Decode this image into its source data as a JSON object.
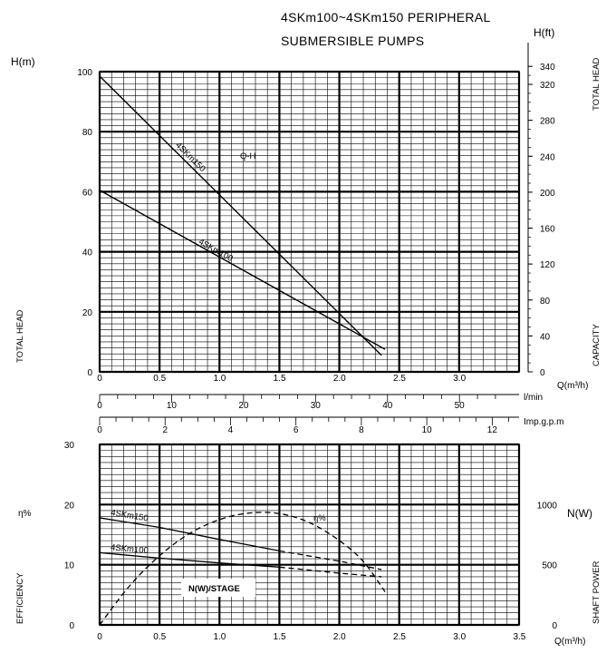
{
  "title_line1": "4SKm100~4SKm150  PERIPHERAL",
  "title_line2": "SUBMERSIBLE  PUMPS",
  "chart_data": [
    {
      "type": "line",
      "name": "Q-H",
      "curve_label": "Q-H",
      "x_unit": "Q(m³/h)",
      "y_unit_left": "H(m)",
      "y_unit_right": "H(ft)",
      "left_axis_label": "TOTAL HEAD",
      "right_axis_label": "TOTAL HEAD",
      "capacity_label": "CAPACITY",
      "xlim": [
        0,
        3.5
      ],
      "ylim": [
        0,
        100
      ],
      "x_ticks": [
        "0",
        "0.5",
        "1.0",
        "1.5",
        "2.0",
        "2.5",
        "3.0"
      ],
      "y_ticks_left": [
        "0",
        "20",
        "40",
        "60",
        "80",
        "100"
      ],
      "y_ticks_right": [
        "0",
        "40",
        "80",
        "120",
        "160",
        "200",
        "240",
        "280",
        "320",
        "340"
      ],
      "series": [
        {
          "name": "4SKm150",
          "x": [
            0,
            2.35
          ],
          "y": [
            98.5,
            5.5
          ]
        },
        {
          "name": "4SKm100",
          "x": [
            0,
            2.38
          ],
          "y": [
            60.5,
            7.5
          ]
        }
      ],
      "grid": true
    },
    {
      "type": "line",
      "name": "efficiency-power",
      "x_unit": "Q(m³/h)",
      "left_axis_label": "EFFICIENCY",
      "left_symbol": "η%",
      "right_axis_label": "SHAFT POWER",
      "right_unit": "N(W)",
      "xlim": [
        0,
        3.5
      ],
      "ylim_left": [
        0,
        30
      ],
      "ylim_right": [
        0,
        1500
      ],
      "x_ticks": [
        "0",
        "0.5",
        "1.0",
        "1.5",
        "2.0",
        "2.5",
        "3.0",
        "3.5"
      ],
      "y_ticks_left": [
        "0",
        "10",
        "20",
        "30"
      ],
      "y_ticks_right": [
        "0",
        "500",
        "1000"
      ],
      "efficiency_label": "η%",
      "power_label": "N(W)/STAGE",
      "series": [
        {
          "name": "η%",
          "x": [
            0,
            0.25,
            0.5,
            0.75,
            1.0,
            1.25,
            1.5,
            1.75,
            2.0,
            2.2,
            2.38
          ],
          "y": [
            0,
            6.5,
            11.5,
            15.2,
            17.5,
            18.6,
            18.5,
            17,
            14,
            10.5,
            5.5
          ]
        },
        {
          "name": "4SKm150",
          "x": [
            0,
            0.5,
            1.0,
            1.5,
            2.0,
            2.35
          ],
          "y": [
            17.8,
            16.2,
            14.2,
            12.3,
            10.6,
            9.2
          ]
        },
        {
          "name": "4SKm100",
          "x": [
            0,
            0.5,
            1.0,
            1.5,
            2.0,
            2.35
          ],
          "y": [
            12,
            11.1,
            10.3,
            9.6,
            8.6,
            8
          ]
        }
      ],
      "grid": true
    }
  ],
  "scales": {
    "lmin": {
      "unit": "l/min",
      "ticks": [
        "0",
        "10",
        "20",
        "30",
        "40",
        "50"
      ],
      "values": [
        0,
        10,
        20,
        30,
        40,
        50
      ]
    },
    "gpm": {
      "unit": "Imp.g.p.m",
      "ticks": [
        "0",
        "2",
        "4",
        "6",
        "8",
        "10",
        "12"
      ],
      "values": [
        0,
        2,
        4,
        6,
        8,
        10,
        12
      ]
    }
  }
}
